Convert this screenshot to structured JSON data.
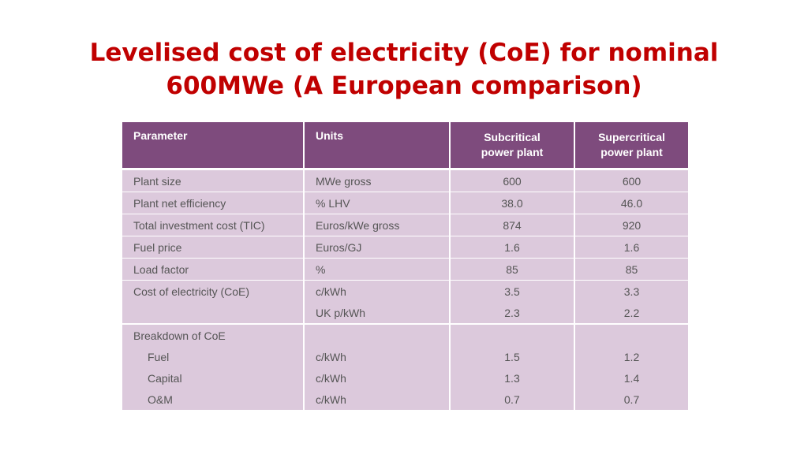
{
  "title": {
    "line1": "Levelised cost of electricity (CoE) for nominal",
    "line2": "600MWe (A European comparison)"
  },
  "table": {
    "headers": {
      "parameter": "Parameter",
      "units": "Units",
      "subcritical_line1": "Subcritical",
      "subcritical_line2": "power plant",
      "supercritical_line1": "Supercritical",
      "supercritical_line2": "power plant"
    },
    "rows": [
      {
        "parameter": "Plant size",
        "units": "MWe gross",
        "subcritical": "600",
        "supercritical": "600"
      },
      {
        "parameter": "Plant net efficiency",
        "units": "% LHV",
        "subcritical": "38.0",
        "supercritical": "46.0"
      },
      {
        "parameter": "Total investment cost (TIC)",
        "units": "Euros/kWe gross",
        "subcritical": "874",
        "supercritical": "920"
      },
      {
        "parameter": "Fuel price",
        "units": "Euros/GJ",
        "subcritical": "1.6",
        "supercritical": "1.6"
      },
      {
        "parameter": "Load factor",
        "units": "%",
        "subcritical": "85",
        "supercritical": "85"
      },
      {
        "parameter": "Cost of electricity (CoE)",
        "units": "c/kWh",
        "subcritical": "3.5",
        "supercritical": "3.3"
      },
      {
        "parameter": "",
        "units": "UK p/kWh",
        "subcritical": "2.3",
        "supercritical": "2.2"
      }
    ],
    "breakdown": {
      "label": "Breakdown of CoE",
      "items": [
        {
          "parameter": "Fuel",
          "units": "c/kWh",
          "subcritical": "1.5",
          "supercritical": "1.2"
        },
        {
          "parameter": "Capital",
          "units": "c/kWh",
          "subcritical": "1.3",
          "supercritical": "1.4"
        },
        {
          "parameter": "O&M",
          "units": "c/kWh",
          "subcritical": "0.7",
          "supercritical": "0.7"
        }
      ]
    }
  },
  "colors": {
    "title": "#c00000",
    "header_bg": "#7e4b7d",
    "cell_bg": "#dcc9dc",
    "cell_text": "#555555"
  }
}
